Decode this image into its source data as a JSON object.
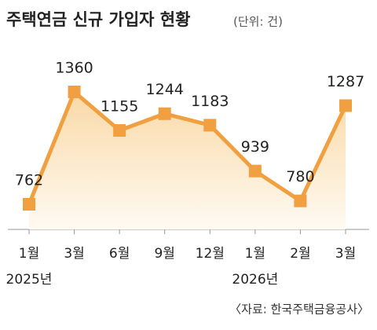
{
  "chart_data": {
    "type": "line",
    "title": "주택연금 신규 가입자 현황",
    "subtitle": "(단위: 건)",
    "categories": [
      "1월",
      "3월",
      "6월",
      "9월",
      "12월",
      "1월",
      "2월",
      "3월"
    ],
    "years": [
      "2025년",
      null,
      null,
      null,
      null,
      "2026년",
      null,
      null
    ],
    "values": [
      762,
      1360,
      1155,
      1244,
      1183,
      939,
      780,
      1287
    ],
    "color": "#f0a040",
    "area": true,
    "source": "〈자료: 한국주택금융공사〉"
  }
}
